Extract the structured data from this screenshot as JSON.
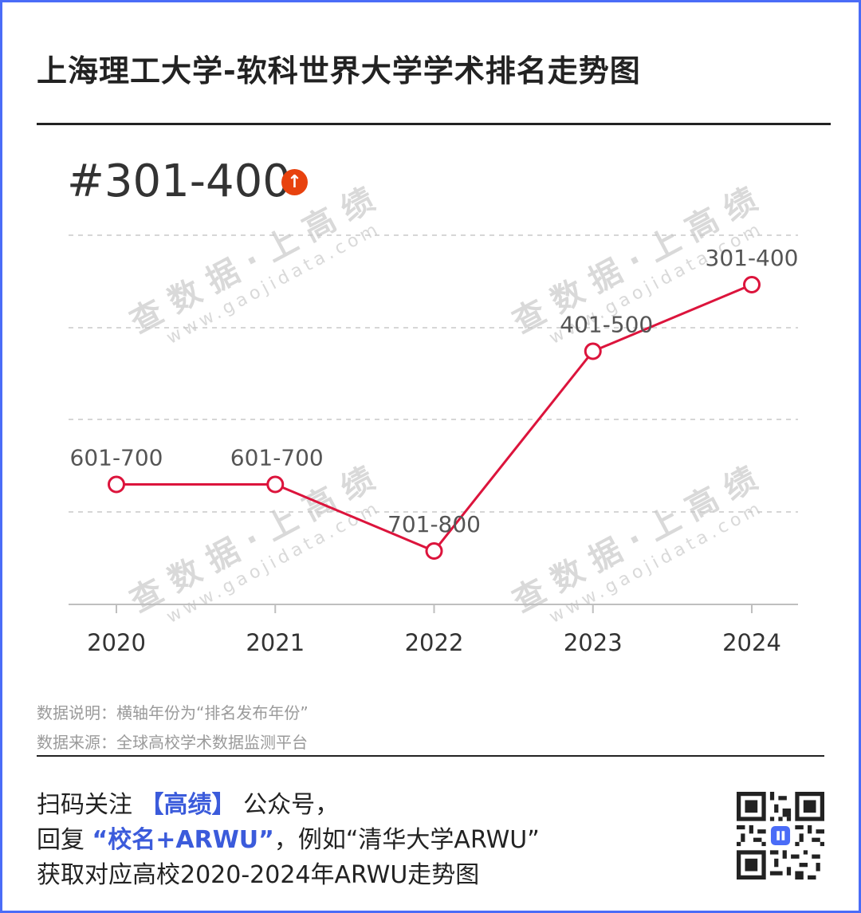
{
  "title": "上海理工大学-软科世界大学学术排名走势图",
  "current_rank": "#301-400",
  "trend_icon": "arrow-up-icon",
  "colors": {
    "line": "#dc143c",
    "badge": "#e8420e",
    "accent": "#3b5bdb",
    "frame": "#4a6cf7"
  },
  "watermark": {
    "cn": "查数据·上高绩",
    "url": "www.gaojidata.com"
  },
  "chart_data": {
    "type": "line",
    "categories": [
      "2020",
      "2021",
      "2022",
      "2023",
      "2024"
    ],
    "rank_labels": [
      "601-700",
      "601-700",
      "701-800",
      "401-500",
      "301-400"
    ],
    "rank_levels": [
      4,
      4,
      5,
      2,
      1
    ],
    "level_note": "rank bands, 1 = 301-400 (top) … 5 = 701-800 (bottom)",
    "grid": true
  },
  "notes": {
    "line1": "数据说明：横轴年份为“排名发布年份”",
    "line2": "数据来源：全球高校学术数据监测平台"
  },
  "promo": {
    "p1": "扫码关注",
    "brand": "【高绩】",
    "p2": "公众号，",
    "p3": "回复",
    "keyword": "“校名+ARWU”",
    "p4": "，例如“清华大学ARWU”",
    "line3": "获取对应高校2020-2024年ARWU走势图"
  },
  "qr_icon": "qr-code-icon"
}
